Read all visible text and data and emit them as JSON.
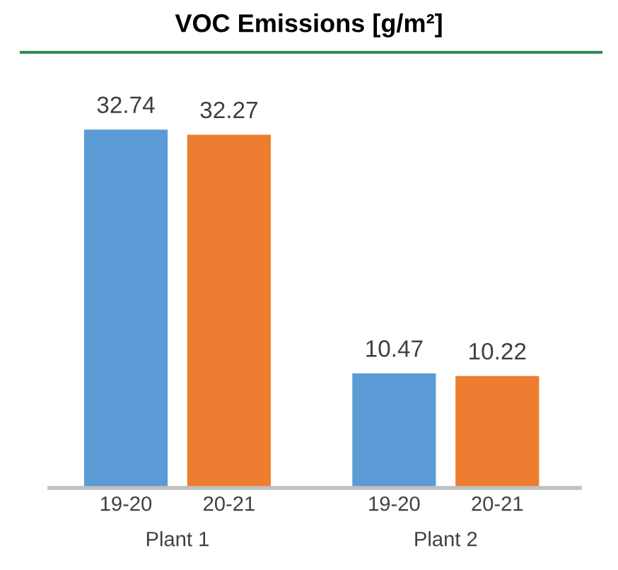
{
  "chart_data": {
    "type": "bar",
    "title": "VOC Emissions [g/m²]",
    "categories": [
      "19-20",
      "20-21",
      "19-20",
      "20-21"
    ],
    "values": [
      32.74,
      32.27,
      10.47,
      10.22
    ],
    "colors": [
      "#5b9bd5",
      "#ed7d31",
      "#5b9bd5",
      "#ed7d31"
    ],
    "data_labels": true,
    "grid": false,
    "legend": false,
    "annotations": [
      "Plant 1",
      "Plant 2"
    ]
  }
}
